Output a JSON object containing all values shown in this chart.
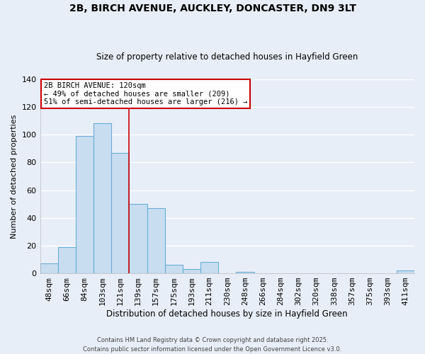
{
  "title": "2B, BIRCH AVENUE, AUCKLEY, DONCASTER, DN9 3LT",
  "subtitle": "Size of property relative to detached houses in Hayfield Green",
  "xlabel": "Distribution of detached houses by size in Hayfield Green",
  "ylabel": "Number of detached properties",
  "bar_labels": [
    "48sqm",
    "66sqm",
    "84sqm",
    "103sqm",
    "121sqm",
    "139sqm",
    "157sqm",
    "175sqm",
    "193sqm",
    "211sqm",
    "230sqm",
    "248sqm",
    "266sqm",
    "284sqm",
    "302sqm",
    "320sqm",
    "338sqm",
    "357sqm",
    "375sqm",
    "393sqm",
    "411sqm"
  ],
  "bar_values": [
    7,
    19,
    99,
    108,
    87,
    50,
    47,
    6,
    3,
    8,
    0,
    1,
    0,
    0,
    0,
    0,
    0,
    0,
    0,
    0,
    2
  ],
  "bar_color": "#c8ddf0",
  "bar_edge_color": "#6aaed6",
  "ylim": [
    0,
    140
  ],
  "yticks": [
    0,
    20,
    40,
    60,
    80,
    100,
    120,
    140
  ],
  "vline_x": 4.5,
  "vline_color": "#cc0000",
  "annotation_title": "2B BIRCH AVENUE: 120sqm",
  "annotation_line1": "← 49% of detached houses are smaller (209)",
  "annotation_line2": "51% of semi-detached houses are larger (216) →",
  "annotation_box_color": "#ffffff",
  "annotation_box_edge": "#cc0000",
  "footer1": "Contains HM Land Registry data © Crown copyright and database right 2025.",
  "footer2": "Contains public sector information licensed under the Open Government Licence v3.0.",
  "background_color": "#e8eef8",
  "grid_color": "#ffffff"
}
